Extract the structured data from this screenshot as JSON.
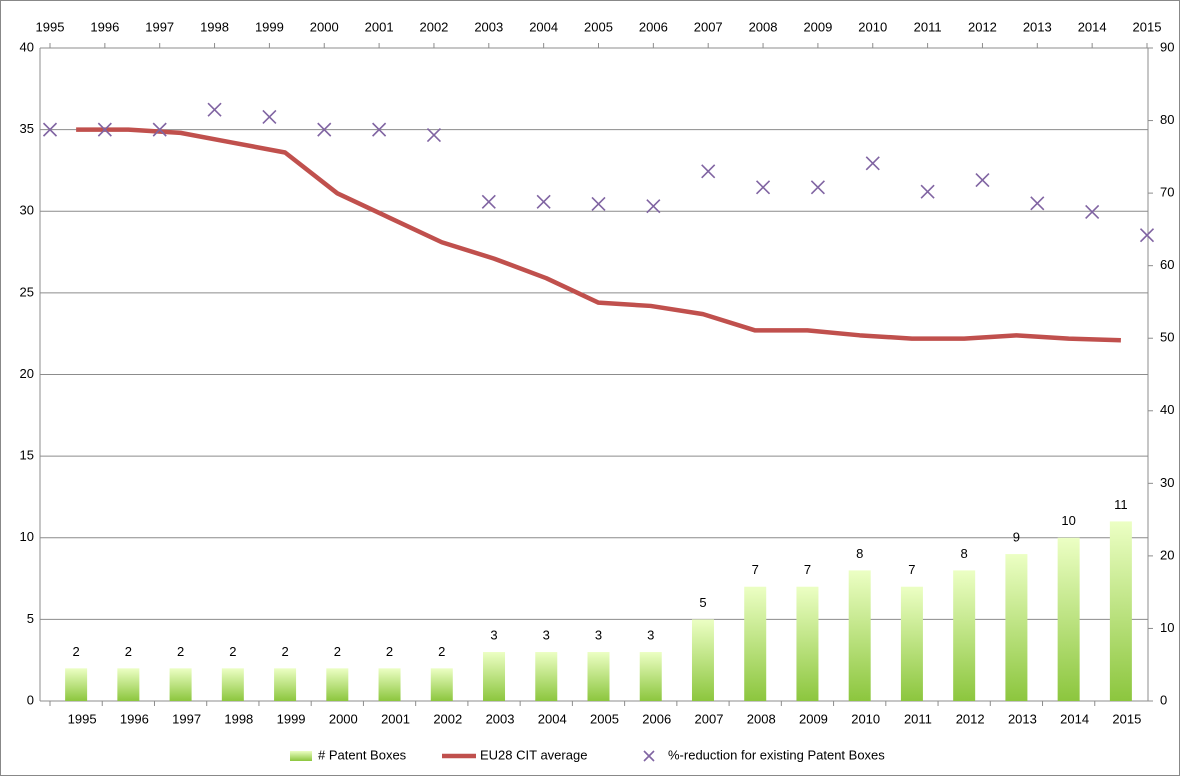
{
  "chart_data": {
    "type": "combo",
    "categories": [
      "1995",
      "1996",
      "1997",
      "1998",
      "1999",
      "2000",
      "2001",
      "2002",
      "2003",
      "2004",
      "2005",
      "2006",
      "2007",
      "2008",
      "2009",
      "2010",
      "2011",
      "2012",
      "2013",
      "2014",
      "2015"
    ],
    "x2_categories": [
      "1995",
      "1996",
      "1997",
      "1998",
      "1999",
      "2000",
      "2001",
      "2002",
      "2003",
      "2004",
      "2005",
      "2006",
      "2007",
      "2008",
      "2009",
      "2010",
      "2011",
      "2012",
      "2013",
      "2014",
      "2015"
    ],
    "series": [
      {
        "name": "# Patent Boxes",
        "type": "bar",
        "color": "#92d050",
        "data_labels": true,
        "values": [
          2,
          2,
          2,
          2,
          2,
          2,
          2,
          2,
          3,
          3,
          3,
          3,
          5,
          7,
          7,
          8,
          7,
          8,
          9,
          10,
          11
        ]
      },
      {
        "name": "EU28 CIT average",
        "type": "line",
        "color": "#c0504d",
        "values": [
          35,
          35,
          34.8,
          34.2,
          33.6,
          31.1,
          29.6,
          28.1,
          27.1,
          25.9,
          24.4,
          24.2,
          23.7,
          22.7,
          22.7,
          22.4,
          22.2,
          22.2,
          22.4,
          22.2,
          22.1
        ]
      },
      {
        "name": "%-reduction for existing Patent Boxes",
        "type": "scatter",
        "axis": "y2",
        "x_axis": "x2",
        "color": "#8064a2",
        "values": [
          78.75,
          78.75,
          78.75,
          81.5,
          80.5,
          78.75,
          78.75,
          78,
          68.8,
          68.8,
          68.5,
          68.2,
          73,
          70.8,
          70.8,
          74.1,
          70.2,
          71.8,
          68.6,
          67.4,
          64.2
        ]
      }
    ],
    "ylim": [
      0,
      40
    ],
    "yticks": [
      0,
      5,
      10,
      15,
      20,
      25,
      30,
      35,
      40
    ],
    "y2lim": [
      0,
      90
    ],
    "y2ticks": [
      0,
      10,
      20,
      30,
      40,
      50,
      60,
      70,
      80,
      90
    ],
    "grid": true,
    "legend": "bottom"
  }
}
